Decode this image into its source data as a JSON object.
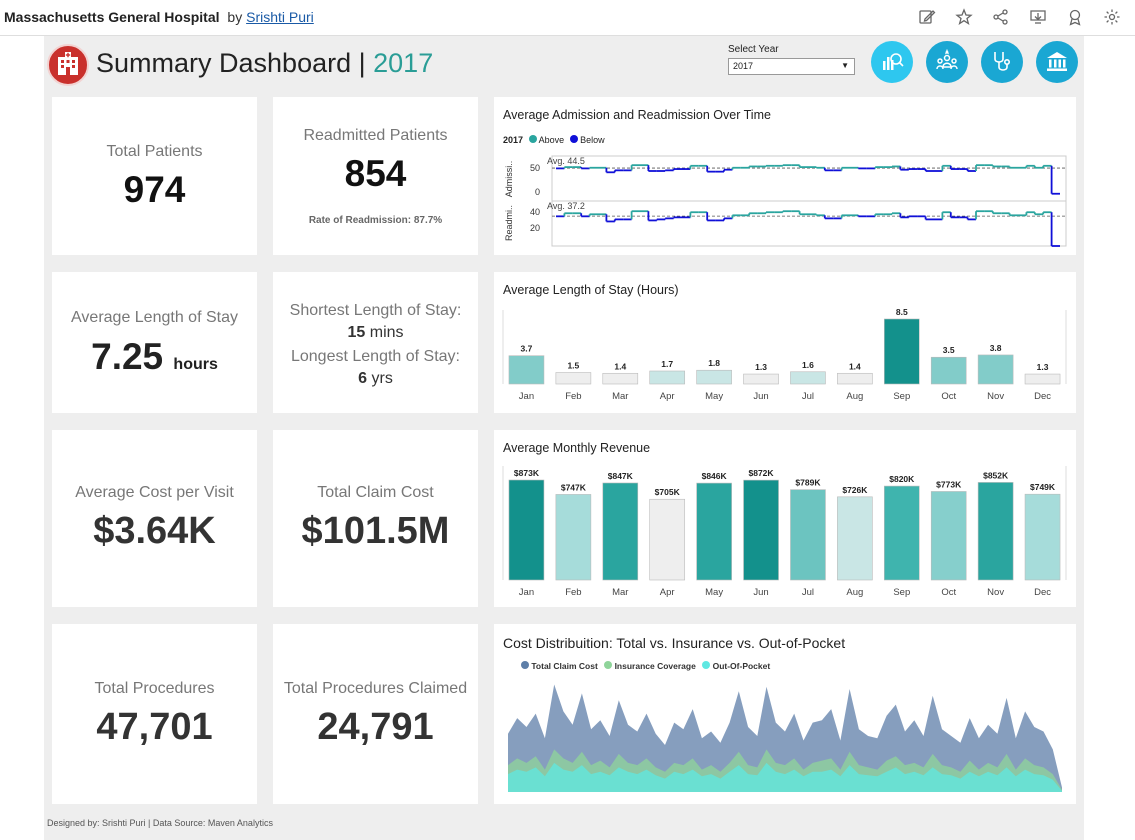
{
  "topbar": {
    "hospital": "Massachusetts General Hospital",
    "by": "by",
    "author": "Srishti Puri",
    "icons": [
      "edit-icon",
      "star-icon",
      "share-icon",
      "download-icon",
      "badge-icon",
      "gear-icon"
    ]
  },
  "header": {
    "title": "Summary Dashboard |",
    "year": "2017",
    "select_label": "Select Year",
    "select_value": "2017"
  },
  "colors": {
    "teal_dark": "#13918c",
    "teal_mid": "#2aa59f",
    "teal_light": "#82ccc9",
    "teal_pale": "#c9e6e5",
    "gray_pale": "#eeeeee",
    "blue_below": "#1010d8",
    "accent": "#2a9d96"
  },
  "kpis": {
    "total_patients": {
      "label": "Total Patients",
      "value": "974"
    },
    "readmitted": {
      "label": "Readmitted Patients",
      "value": "854",
      "sub": "Rate of Readmission: 87.7%"
    },
    "avg_los": {
      "label": "Average Length of Stay",
      "value": "7.25",
      "unit": "hours"
    },
    "los_range": {
      "shortest_label": "Shortest Length of Stay:",
      "shortest_value": "15",
      "shortest_unit": "mins",
      "longest_label": "Longest Length of Stay:",
      "longest_value": "6",
      "longest_unit": "yrs"
    },
    "avg_cost": {
      "label": "Average Cost per Visit",
      "value": "$3.64K"
    },
    "total_claim": {
      "label": "Total Claim Cost",
      "value": "$101.5M"
    },
    "total_procedures": {
      "label": "Total Procedures",
      "value": "47,701"
    },
    "procedures_claimed": {
      "label": "Total Procedures Claimed",
      "value": "24,791"
    }
  },
  "admission_chart": {
    "title": "Average Admission and Readmission Over Time",
    "legend_year": "2017",
    "legend_above": "Above",
    "legend_below": "Below",
    "admission_axis": "Admissi..",
    "readmission_axis": "Readmi..",
    "admission_ticks": [
      "50",
      "0"
    ],
    "readmission_ticks": [
      "40",
      "20"
    ],
    "admission_avg_label": "Avg. 44.5",
    "readmission_avg_label": "Avg. 37.2"
  },
  "footer": {
    "text": "Designed by: Srishti Puri | Data Source: Maven Analytics"
  },
  "chart_data": [
    {
      "type": "line",
      "title": "Average Admission and Readmission Over Time",
      "series": [
        {
          "name": "Admissions",
          "average": 44.5,
          "values": [
            44,
            46,
            46,
            44,
            45,
            45,
            38,
            41,
            41,
            49,
            49,
            40,
            40,
            41,
            43,
            43,
            48,
            48,
            39,
            39,
            42,
            45,
            45,
            47,
            47,
            48,
            48,
            49,
            49,
            46,
            46,
            45,
            41,
            41,
            45,
            45,
            44,
            44,
            46,
            46,
            47,
            42,
            43,
            43,
            40,
            40,
            48,
            43,
            43,
            40,
            49,
            49,
            47,
            47,
            45,
            45,
            48,
            45,
            48,
            5
          ]
        },
        {
          "name": "Readmissions",
          "average": 37.2,
          "values": [
            37,
            40,
            40,
            37,
            39,
            39,
            32,
            34,
            34,
            42,
            42,
            33,
            34,
            35,
            36,
            36,
            41,
            41,
            33,
            33,
            35,
            38,
            38,
            40,
            40,
            41,
            41,
            42,
            42,
            39,
            39,
            38,
            35,
            35,
            38,
            38,
            37,
            37,
            39,
            39,
            40,
            36,
            37,
            37,
            34,
            34,
            41,
            36,
            36,
            34,
            42,
            42,
            40,
            40,
            38,
            38,
            41,
            39,
            41,
            4
          ]
        }
      ]
    },
    {
      "type": "bar",
      "title": "Average Length of Stay (Hours)",
      "categories": [
        "Jan",
        "Feb",
        "Mar",
        "Apr",
        "May",
        "Jun",
        "Jul",
        "Aug",
        "Sep",
        "Oct",
        "Nov",
        "Dec"
      ],
      "values": [
        3.7,
        1.5,
        1.4,
        1.7,
        1.8,
        1.3,
        1.6,
        1.4,
        8.5,
        3.5,
        3.8,
        1.3
      ],
      "labels": [
        "3.7",
        "1.5",
        "1.4",
        "1.7",
        "1.8",
        "1.3",
        "1.6",
        "1.4",
        "8.5",
        "3.5",
        "3.8",
        "1.3"
      ],
      "ylim": [
        0,
        8.5
      ]
    },
    {
      "type": "bar",
      "title": "Average Monthly Revenue",
      "categories": [
        "Jan",
        "Feb",
        "Mar",
        "Apr",
        "May",
        "Jun",
        "Jul",
        "Aug",
        "Sep",
        "Oct",
        "Nov",
        "Dec"
      ],
      "values": [
        873,
        747,
        847,
        705,
        846,
        872,
        789,
        726,
        820,
        773,
        852,
        749
      ],
      "labels": [
        "$873K",
        "$747K",
        "$847K",
        "$705K",
        "$846K",
        "$872K",
        "$789K",
        "$726K",
        "$820K",
        "$773K",
        "$852K",
        "$749K"
      ],
      "ylim": [
        0,
        873
      ]
    },
    {
      "type": "area",
      "title": "Cost Distribuition: Total vs. Insurance vs. Out-of-Pocket",
      "series": [
        {
          "name": "Total Claim Cost",
          "color": "#5d7ea8",
          "values": [
            52,
            66,
            58,
            70,
            48,
            96,
            72,
            60,
            88,
            56,
            64,
            50,
            82,
            60,
            54,
            70,
            52,
            42,
            62,
            56,
            74,
            48,
            54,
            44,
            62,
            90,
            58,
            50,
            94,
            62,
            54,
            70,
            46,
            62,
            64,
            74,
            46,
            92,
            56,
            50,
            48,
            68,
            78,
            54,
            64,
            50,
            86,
            56,
            50,
            44,
            66,
            48,
            60,
            52,
            84,
            48,
            72,
            58,
            54,
            38,
            4
          ]
        },
        {
          "name": "Insurance Coverage",
          "color": "#8fd49a",
          "values": [
            24,
            30,
            26,
            32,
            20,
            38,
            30,
            26,
            36,
            24,
            28,
            22,
            34,
            26,
            24,
            30,
            22,
            18,
            26,
            24,
            30,
            20,
            24,
            18,
            26,
            36,
            24,
            22,
            38,
            26,
            24,
            30,
            20,
            26,
            28,
            30,
            20,
            36,
            24,
            22,
            20,
            28,
            32,
            24,
            26,
            22,
            34,
            24,
            22,
            18,
            28,
            20,
            26,
            22,
            34,
            20,
            30,
            24,
            22,
            16,
            2
          ]
        },
        {
          "name": "Out-Of-Pocket",
          "color": "#5fe8e2",
          "values": [
            16,
            20,
            18,
            22,
            14,
            26,
            20,
            18,
            24,
            16,
            18,
            15,
            22,
            18,
            16,
            20,
            15,
            12,
            18,
            16,
            20,
            14,
            16,
            12,
            18,
            24,
            16,
            15,
            26,
            18,
            16,
            20,
            14,
            18,
            18,
            20,
            14,
            24,
            16,
            15,
            14,
            18,
            22,
            16,
            18,
            15,
            22,
            16,
            15,
            12,
            18,
            14,
            18,
            15,
            22,
            14,
            20,
            16,
            15,
            11,
            1
          ]
        }
      ]
    }
  ]
}
